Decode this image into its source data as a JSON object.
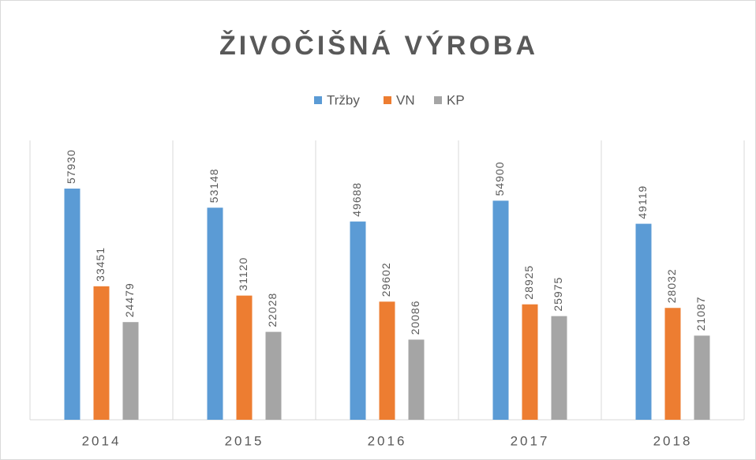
{
  "chart_data": {
    "type": "bar",
    "title": "ŽIVOČIŠNÁ VÝROBA",
    "categories": [
      "2014",
      "2015",
      "2016",
      "2017",
      "2018"
    ],
    "series": [
      {
        "name": "Tržby",
        "color": "#5b9bd5",
        "values": [
          57930,
          53148,
          49688,
          54900,
          49119
        ]
      },
      {
        "name": "VN",
        "color": "#ed7d31",
        "values": [
          33451,
          31120,
          29602,
          28925,
          28032
        ]
      },
      {
        "name": "KP",
        "color": "#a5a5a5",
        "values": [
          24479,
          22028,
          20086,
          25975,
          21087
        ]
      }
    ],
    "ylim": [
      0,
      70000
    ],
    "legend": "top"
  }
}
